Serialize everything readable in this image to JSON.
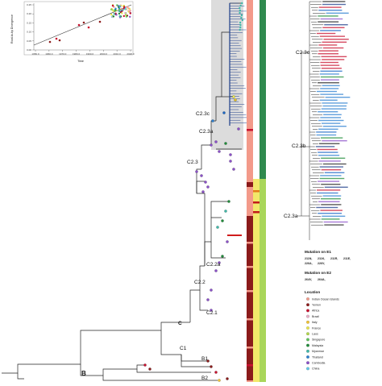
{
  "inset_plot": {
    "ylabel": "Root-to-tip Divergence",
    "xlabel": "Time",
    "y_ticks": [
      "0.00",
      "0.05",
      "0.10",
      "0.15",
      "0.20",
      "0.25"
    ],
    "x_ticks": [
      "1950.0",
      "1960.0",
      "1970.0",
      "1980.0",
      "1990.0",
      "2000.0",
      "2010.0",
      "2020.0"
    ]
  },
  "clades": {
    "c23c": "C2.3c",
    "c23a": "C2.3a",
    "c23": "C2.3",
    "c22a": "C2.2a",
    "c22": "C2.2",
    "c21": "C2.1",
    "c": "C",
    "c1": "C1",
    "b1": "B1",
    "b": "B",
    "b2": "B2",
    "zoom_c23c": "C2.3c",
    "zoom_c23b": "C2.3b",
    "zoom_c23a": "C2.3a"
  },
  "legend": {
    "e1_title": "Mutation on E1",
    "e1_items": [
      {
        "label": "211N",
        "color": "#e8c21a"
      },
      {
        "label": "211K",
        "color": "#1f9c4a"
      },
      {
        "label": "211R",
        "color": "#1a66c4"
      },
      {
        "label": "211E",
        "color": "#e37b1a"
      },
      {
        "label": "226A",
        "color": "#e08a2a"
      },
      {
        "label": "226V",
        "color": "#c01a1a"
      }
    ],
    "e2_title": "Mutation on E2",
    "e2_items": [
      {
        "label": "264V",
        "color": "#3aa84a"
      },
      {
        "label": "264A",
        "color": "#8bc34a"
      }
    ],
    "loc_title": "Location",
    "locations": [
      {
        "label": "Indian Ocean Islands",
        "color": "#f39a8a"
      },
      {
        "label": "Yemen",
        "color": "#8b1a1a"
      },
      {
        "label": "Africa",
        "color": "#c8102e"
      },
      {
        "label": "Brazil",
        "color": "#e8b0c8"
      },
      {
        "label": "Italy",
        "color": "#f2c230"
      },
      {
        "label": "France",
        "color": "#e9e64a"
      },
      {
        "label": "Laos",
        "color": "#b3d94a"
      },
      {
        "label": "Singapore",
        "color": "#5cc45c"
      },
      {
        "label": "Malaysia",
        "color": "#1f8c3a"
      },
      {
        "label": "Myanmar",
        "color": "#3fb8a8"
      },
      {
        "label": "Thailand",
        "color": "#2b7fd0"
      },
      {
        "label": "Cambodia",
        "color": "#8a4fc8"
      },
      {
        "label": "China",
        "color": "#60c8e8"
      }
    ]
  },
  "colors": {
    "band_salmon": "#f39a8a",
    "band_darkred": "#8b1a1a",
    "band_green": "#2f8a4e",
    "band_lightgreen": "#a9d65a",
    "band_yellow": "#f2e86a",
    "shade": "#dcdcdc"
  }
}
